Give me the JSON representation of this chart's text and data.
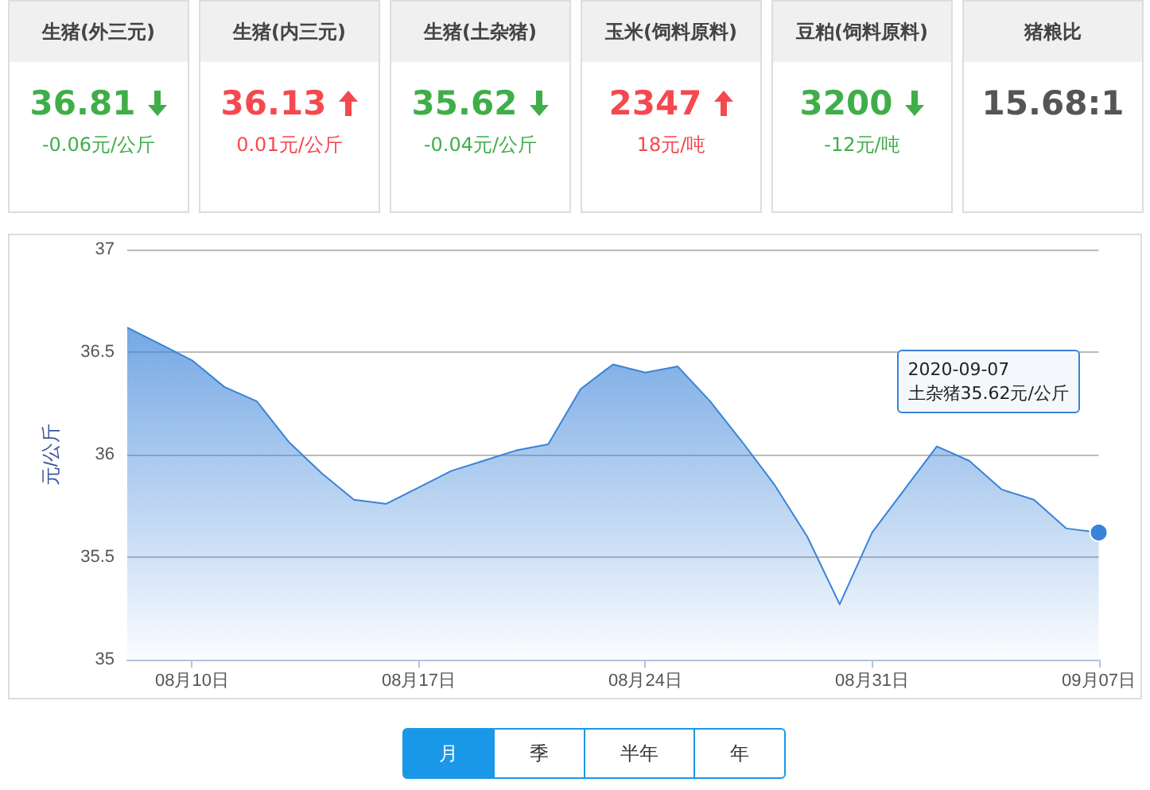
{
  "chart_data": [
    {
      "type": "other",
      "categories": [
        "生猪(外三元)",
        "生猪(内三元)",
        "生猪(土杂猪)",
        "玉米(饲料原料)",
        "豆粕(饲料原料)",
        "猪粮比"
      ],
      "value_labels": [
        "36.81",
        "36.13",
        "35.62",
        "2347",
        "3200",
        "15.68:1"
      ],
      "annotations": [
        "-0.06元/公斤",
        "0.01元/公斤",
        "-0.04元/公斤",
        "18元/吨",
        "-12元/吨"
      ]
    },
    {
      "type": "area",
      "ylabel": "元/公斤",
      "color": "#3a83d8",
      "grid": "y",
      "x": [
        "2020-08-08",
        "2020-08-09",
        "2020-08-10",
        "2020-08-11",
        "2020-08-12",
        "2020-08-13",
        "2020-08-14",
        "2020-08-15",
        "2020-08-16",
        "2020-08-17",
        "2020-08-18",
        "2020-08-19",
        "2020-08-20",
        "2020-08-21",
        "2020-08-22",
        "2020-08-23",
        "2020-08-24",
        "2020-08-25",
        "2020-08-26",
        "2020-08-27",
        "2020-08-28",
        "2020-08-29",
        "2020-08-30",
        "2020-08-31",
        "2020-09-01",
        "2020-09-02",
        "2020-09-03",
        "2020-09-04",
        "2020-09-05",
        "2020-09-06",
        "2020-09-07"
      ],
      "values": [
        36.62,
        36.54,
        36.46,
        36.33,
        36.26,
        36.06,
        35.91,
        35.78,
        35.76,
        35.84,
        35.92,
        35.97,
        36.02,
        36.05,
        36.32,
        36.44,
        36.4,
        36.43,
        36.26,
        36.06,
        35.85,
        35.6,
        35.27,
        35.62,
        35.83,
        36.04,
        35.97,
        35.83,
        35.78,
        35.64,
        35.62
      ],
      "xlim": [
        "2020-08-08",
        "2020-09-07"
      ],
      "xticks": [
        {
          "value": "2020-08-10",
          "label": "08月10日"
        },
        {
          "value": "2020-08-17",
          "label": "08月17日"
        },
        {
          "value": "2020-08-24",
          "label": "08月24日"
        },
        {
          "value": "2020-08-31",
          "label": "08月31日"
        },
        {
          "value": "2020-09-07",
          "label": "09月07日"
        }
      ],
      "ylim": [
        35,
        37
      ],
      "yticks": [
        35,
        35.5,
        36,
        36.5,
        37
      ],
      "annotations": [
        "2020-09-07\n土杂猪35.62元/公斤",
        "月",
        "季",
        "半年",
        "年"
      ]
    }
  ]
}
